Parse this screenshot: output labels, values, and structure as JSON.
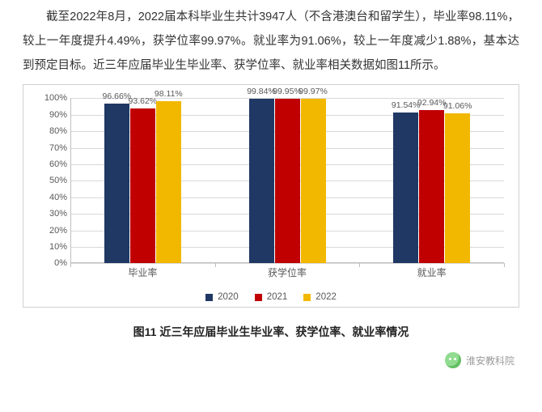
{
  "paragraph": "截至2022年8月，2022届本科毕业生共计3947人（不含港澳台和留学生），毕业率98.11%，较上一年度提升4.49%，获学位率99.97%。就业率为91.06%，较上一年度减少1.88%，基本达到预定目标。近三年应届毕业生毕业率、获学位率、就业率相关数据如图11所示。",
  "chart": {
    "type": "bar",
    "categories": [
      "毕业率",
      "获学位率",
      "就业率"
    ],
    "series": [
      {
        "name": "2020",
        "color": "#1f3864",
        "values": [
          96.66,
          99.84,
          91.54
        ]
      },
      {
        "name": "2021",
        "color": "#c00000",
        "values": [
          93.62,
          99.95,
          92.94
        ]
      },
      {
        "name": "2022",
        "color": "#f2b800",
        "values": [
          98.11,
          99.97,
          91.06
        ]
      }
    ],
    "value_labels": [
      [
        "96.66%",
        "93.62%",
        "98.11%"
      ],
      [
        "99.84%",
        "99.95%",
        "99.97%"
      ],
      [
        "91.54%",
        "92.94%",
        "91.06%"
      ]
    ],
    "y": {
      "min": 0,
      "max": 100,
      "step": 10,
      "suffix": "%"
    },
    "grid_color": "#d9d9d9",
    "axis_color": "#bfbfbf",
    "label_color": "#595959",
    "background": "#ffffff"
  },
  "caption": "图11 近三年应届毕业生毕业率、获学位率、就业率情况",
  "source": "淮安教科院"
}
